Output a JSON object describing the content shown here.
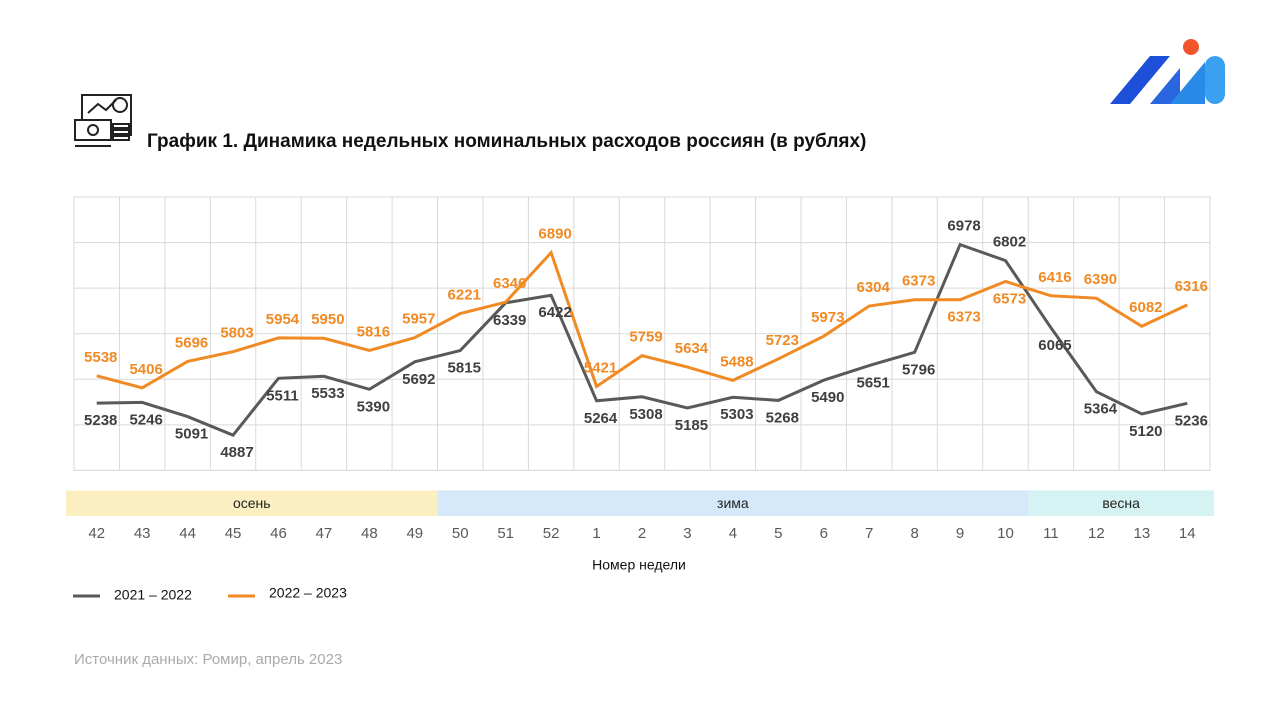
{
  "chart_data": {
    "type": "line",
    "title": "График 1. Динамика недельных номинальных расходов россиян (в рублях)",
    "x_label": "Номер недели",
    "source": "Источник данных: Ромир, апрель 2023",
    "categories": [
      "42",
      "43",
      "44",
      "45",
      "46",
      "47",
      "48",
      "49",
      "50",
      "51",
      "52",
      "1",
      "2",
      "3",
      "4",
      "5",
      "6",
      "7",
      "8",
      "9",
      "10",
      "11",
      "12",
      "13",
      "14"
    ],
    "series": [
      {
        "name": "2021 – 2022",
        "color": "#595959",
        "label_color": "#404040",
        "values": [
          5238,
          5246,
          5091,
          4887,
          5511,
          5533,
          5390,
          5692,
          5815,
          6339,
          6422,
          5264,
          5308,
          5185,
          5303,
          5268,
          5490,
          5651,
          5796,
          6978,
          6802,
          6065,
          5364,
          5120,
          5236
        ]
      },
      {
        "name": "2022 – 2023",
        "color": "#f08a24",
        "label_color": "#f08a24",
        "values": [
          5538,
          5406,
          5696,
          5803,
          5954,
          5950,
          5816,
          5957,
          6221,
          6346,
          6890,
          5421,
          5759,
          5634,
          5488,
          5723,
          5973,
          6304,
          6373,
          6373,
          6573,
          6416,
          6390,
          6082,
          6316
        ]
      }
    ],
    "seasons": [
      {
        "label": "осень",
        "from": "42",
        "to": "49",
        "color": "#fbefc1"
      },
      {
        "label": "зима",
        "from": "50",
        "to": "10",
        "color": "#d6e9fb"
      },
      {
        "label": "весна",
        "from": "11",
        "to": "14",
        "color": "#d5f3f3"
      }
    ],
    "ylim": [
      4000,
      7500
    ],
    "yticks": [
      4500,
      5000,
      5500,
      6000,
      6500,
      7000,
      7500
    ],
    "grid": true
  }
}
